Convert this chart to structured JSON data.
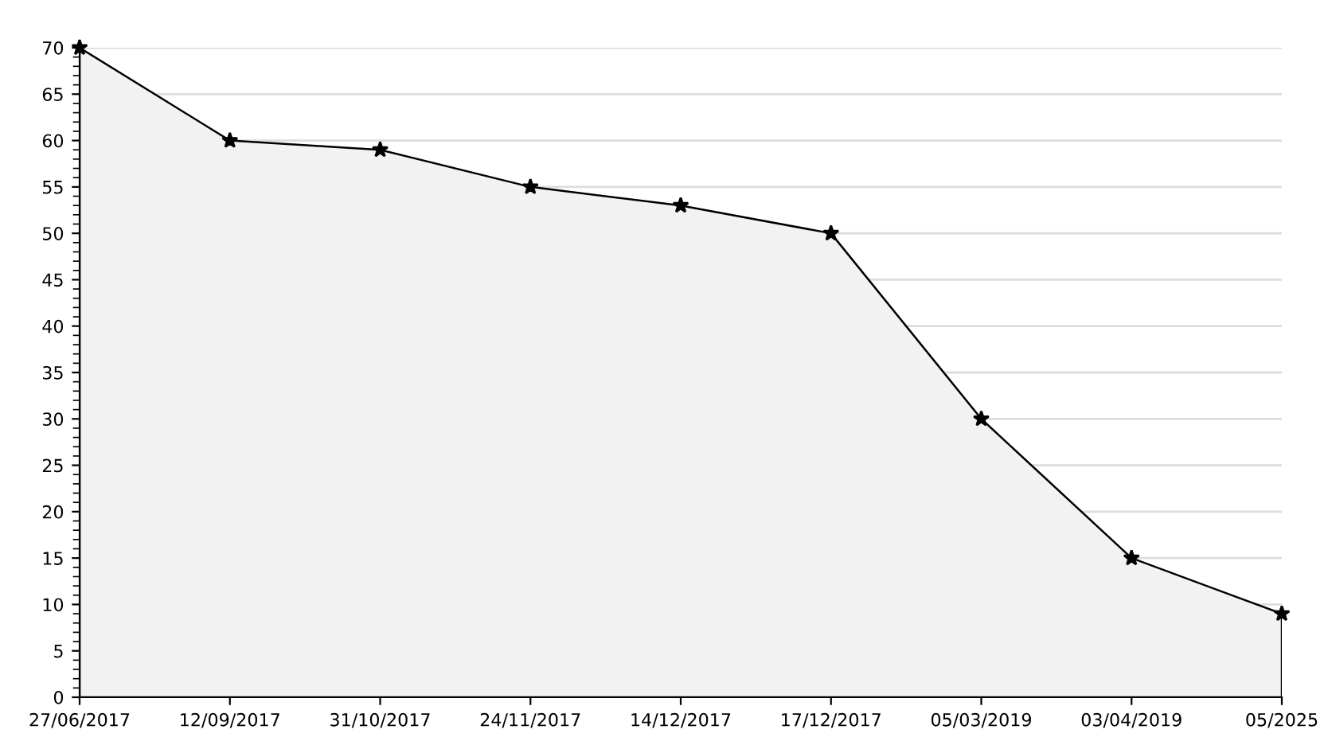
{
  "chart_data": {
    "type": "area",
    "categories": [
      "27/06/2017",
      "12/09/2017",
      "31/10/2017",
      "24/11/2017",
      "14/12/2017",
      "17/12/2017",
      "05/03/2019",
      "03/04/2019",
      "05/2025"
    ],
    "series": [
      {
        "color": "#000000",
        "values": [
          70,
          60,
          59,
          55,
          53,
          50,
          30,
          15,
          9
        ]
      }
    ],
    "ylim": [
      0,
      70
    ],
    "yticks": [
      0,
      5,
      10,
      15,
      20,
      25,
      30,
      35,
      40,
      45,
      50,
      55,
      60,
      65,
      70
    ],
    "grid": "y",
    "marker": "star",
    "line_style": "solid"
  }
}
